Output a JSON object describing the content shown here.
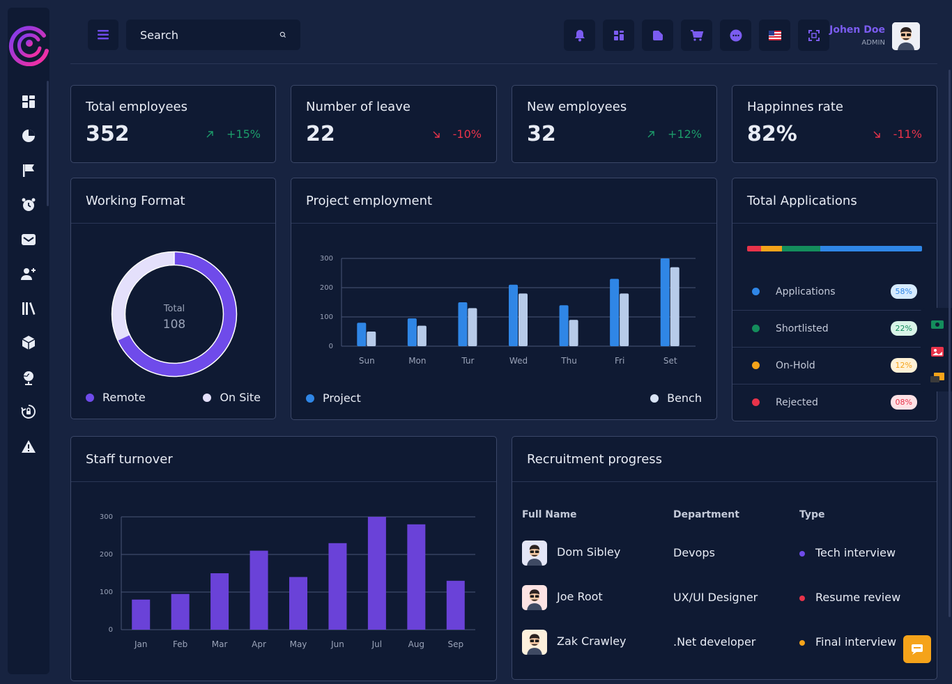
{
  "header": {
    "search_placeholder": "Search",
    "user": {
      "name": "Johen Doe",
      "role": "ADMIN"
    },
    "tools": [
      "bell-icon",
      "grid-icon",
      "folder-icon",
      "cart-icon",
      "chat-icon",
      "us-flag-icon",
      "fullscreen-icon"
    ]
  },
  "sidebar": {
    "icons": [
      "dashboard-icon",
      "pie-chart-icon",
      "flag-icon",
      "alarm-icon",
      "mail-icon",
      "add-user-icon",
      "library-icon",
      "box-icon",
      "globe-icon",
      "lock-reset-icon",
      "warning-icon"
    ]
  },
  "stats": [
    {
      "title": "Total employees",
      "value": "352",
      "change": "+15%",
      "trend": "up"
    },
    {
      "title": "Number of leave",
      "value": "22",
      "change": "-10%",
      "trend": "down"
    },
    {
      "title": "New employees",
      "value": "32",
      "change": "+12%",
      "trend": "up"
    },
    {
      "title": "Happinnes rate",
      "value": "82%",
      "change": "-11%",
      "trend": "down"
    }
  ],
  "working_format": {
    "title": "Working Format",
    "center_label": "Total",
    "center_value": "108",
    "legend": [
      {
        "label": "Remote",
        "color": "#6f4bea"
      },
      {
        "label": "On Site",
        "color": "#e4e0fb"
      }
    ]
  },
  "project_employment": {
    "title": "Project employment",
    "legend": [
      {
        "label": "Project",
        "color": "#2f86e6"
      },
      {
        "label": "Bench",
        "color": "#d9e4f5"
      }
    ]
  },
  "staff_turnover": {
    "title": "Staff turnover"
  },
  "total_applications": {
    "title": "Total Applications",
    "bar": [
      {
        "color": "#e8334a",
        "share": 0.08
      },
      {
        "color": "#f5a31a",
        "share": 0.12
      },
      {
        "color": "#148d5c",
        "share": 0.22
      },
      {
        "color": "#2f86e6",
        "share": 0.58
      }
    ],
    "rows": [
      {
        "label": "Applications",
        "pct": "58%",
        "color": "#2f86e6",
        "pill_bg": "#d6ebff",
        "pill_fg": "#2f86e6"
      },
      {
        "label": "Shortlisted",
        "pct": "22%",
        "color": "#148d5c",
        "pill_bg": "#d9f4e8",
        "pill_fg": "#148d5c"
      },
      {
        "label": "On-Hold",
        "pct": "12%",
        "color": "#f5a31a",
        "pill_bg": "#fff1d6",
        "pill_fg": "#f5a31a"
      },
      {
        "label": "Rejected",
        "pct": "08%",
        "color": "#e8334a",
        "pill_bg": "#fde1e5",
        "pill_fg": "#e8334a"
      }
    ]
  },
  "recruitment": {
    "title": "Recruitment progress",
    "columns": [
      "Full Name",
      "Department",
      "Type"
    ],
    "rows": [
      {
        "name": "Dom Sibley",
        "department": "Devops",
        "type": "Tech interview",
        "dot": "#6f4bea",
        "avatar_bg": "#e4e6f7"
      },
      {
        "name": "Joe Root",
        "department": "UX/UI Designer",
        "type": "Resume review",
        "dot": "#e8334a",
        "avatar_bg": "#fde3e3"
      },
      {
        "name": "Zak Crawley",
        "department": ".Net developer",
        "type": "Final interview",
        "dot": "#f5a31a",
        "avatar_bg": "#fdf0dc"
      }
    ]
  },
  "chart_data": [
    {
      "type": "bar",
      "categories": [
        "Sun",
        "Mon",
        "Tur",
        "Wed",
        "Thu",
        "Fri",
        "Set"
      ],
      "series": [
        {
          "name": "Project",
          "values": [
            80,
            95,
            150,
            210,
            140,
            230,
            300
          ]
        },
        {
          "name": "Bench",
          "values": [
            50,
            70,
            130,
            180,
            90,
            180,
            270
          ]
        }
      ],
      "yticks": [
        0,
        100,
        200,
        300
      ],
      "ylim": [
        0,
        300
      ],
      "grid": true
    },
    {
      "type": "bar",
      "categories": [
        "Jan",
        "Feb",
        "Mar",
        "Apr",
        "May",
        "Jun",
        "Jul",
        "Aug",
        "Sep"
      ],
      "values": [
        80,
        95,
        150,
        210,
        140,
        230,
        300,
        280,
        130
      ],
      "yticks": [
        0,
        100,
        200,
        300
      ],
      "ylim": [
        0,
        300
      ],
      "grid": true
    },
    {
      "type": "pie",
      "labels": [
        "Remote",
        "On Site"
      ],
      "values": [
        68,
        32
      ],
      "total": 108
    }
  ]
}
